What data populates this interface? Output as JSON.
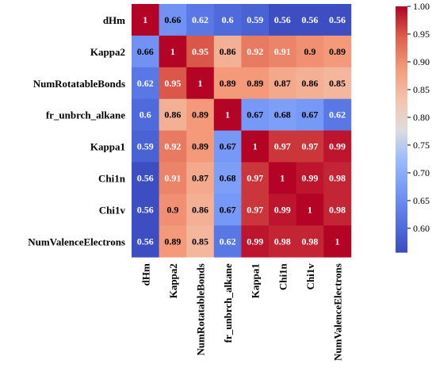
{
  "chart_data": {
    "type": "heatmap",
    "title": "",
    "xlabel": "",
    "ylabel": "",
    "variables": [
      "dHm",
      "Kappa2",
      "NumRotatableBonds",
      "fr_unbrch_alkane",
      "Kappa1",
      "Chi1n",
      "Chi1v",
      "NumValenceElectrons"
    ],
    "values": [
      [
        1,
        0.66,
        0.62,
        0.6,
        0.59,
        0.56,
        0.56,
        0.56
      ],
      [
        0.66,
        1,
        0.95,
        0.86,
        0.92,
        0.91,
        0.9,
        0.89
      ],
      [
        0.62,
        0.95,
        1,
        0.89,
        0.89,
        0.87,
        0.86,
        0.85
      ],
      [
        0.6,
        0.86,
        0.89,
        1,
        0.67,
        0.68,
        0.67,
        0.62
      ],
      [
        0.59,
        0.92,
        0.89,
        0.67,
        1,
        0.97,
        0.97,
        0.99
      ],
      [
        0.56,
        0.91,
        0.87,
        0.68,
        0.97,
        1,
        0.99,
        0.98
      ],
      [
        0.56,
        0.9,
        0.86,
        0.67,
        0.97,
        0.99,
        1,
        0.98
      ],
      [
        0.56,
        0.89,
        0.85,
        0.62,
        0.99,
        0.98,
        0.98,
        1
      ]
    ],
    "annotations": [
      [
        "1",
        "0.66",
        "0.62",
        "0.6",
        "0.59",
        "0.56",
        "0.56",
        "0.56"
      ],
      [
        "0.66",
        "1",
        "0.95",
        "0.86",
        "0.92",
        "0.91",
        "0.9",
        "0.89"
      ],
      [
        "0.62",
        "0.95",
        "1",
        "0.89",
        "0.89",
        "0.87",
        "0.86",
        "0.85"
      ],
      [
        "0.6",
        "0.86",
        "0.89",
        "1",
        "0.67",
        "0.68",
        "0.67",
        "0.62"
      ],
      [
        "0.59",
        "0.92",
        "0.89",
        "0.67",
        "1",
        "0.97",
        "0.97",
        "0.99"
      ],
      [
        "0.56",
        "0.91",
        "0.87",
        "0.68",
        "0.97",
        "1",
        "0.99",
        "0.98"
      ],
      [
        "0.56",
        "0.9",
        "0.86",
        "0.67",
        "0.97",
        "0.99",
        "1",
        "0.98"
      ],
      [
        "0.56",
        "0.89",
        "0.85",
        "0.62",
        "0.99",
        "0.98",
        "0.98",
        "1"
      ]
    ],
    "colormap": "coolwarm",
    "colorbar": {
      "range": [
        0.557,
        1.0
      ],
      "ticks": [
        0.6,
        0.65,
        0.7,
        0.75,
        0.8,
        0.85,
        0.9,
        0.95,
        1.0
      ],
      "tick_labels": [
        "0.60",
        "0.65",
        "0.70",
        "0.75",
        "0.80",
        "0.85",
        "0.90",
        "0.95",
        "1.00"
      ]
    },
    "grid": false,
    "legend": "colorbar-right"
  },
  "colors": {
    "cmap_low": "#3b4cc0",
    "cmap_mid": "#dddddd",
    "cmap_high": "#b40426",
    "text_dark": "#000000",
    "text_light": "#ffffff"
  }
}
